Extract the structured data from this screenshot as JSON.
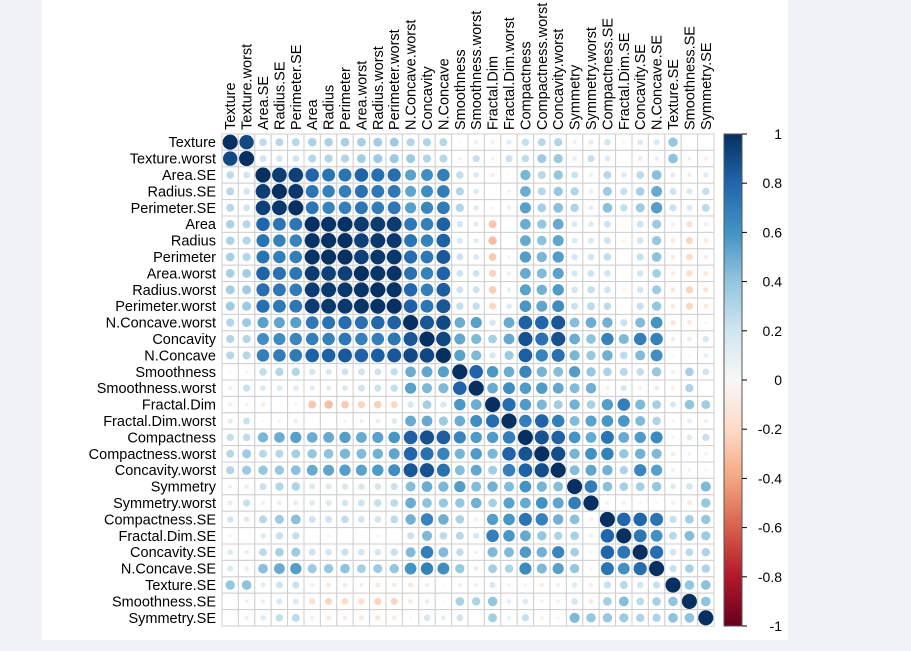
{
  "chart_data": {
    "type": "heatmap",
    "style": "corrplot-circle",
    "labels": [
      "Texture",
      "Texture.worst",
      "Area.SE",
      "Radius.SE",
      "Perimeter.SE",
      "Area",
      "Radius",
      "Perimeter",
      "Area.worst",
      "Radius.worst",
      "Perimeter.worst",
      "N.Concave.worst",
      "Concavity",
      "N.Concave",
      "Smoothness",
      "Smoothness.worst",
      "Fractal.Dim",
      "Fractal.Dim.worst",
      "Compactness",
      "Compactness.worst",
      "Concavity.worst",
      "Symmetry",
      "Symmetry.worst",
      "Compactness.SE",
      "Fractal.Dim.SE",
      "Concavity.SE",
      "N.Concave.SE",
      "Texture.SE",
      "Smoothness.SE",
      "Symmetry.SE"
    ],
    "upper_triangle": [
      [
        0.91,
        0.26,
        0.28,
        0.28,
        0.32,
        0.32,
        0.33,
        0.34,
        0.35,
        0.36,
        0.3,
        0.3,
        0.29,
        -0.02,
        0.08,
        -0.08,
        0.12,
        0.24,
        0.28,
        0.3,
        0.07,
        0.11,
        0.19,
        0.05,
        0.14,
        0.16,
        0.39,
        0.01,
        0.01
      ],
      [
        0.2,
        0.19,
        0.2,
        0.29,
        0.3,
        0.3,
        0.35,
        0.36,
        0.37,
        0.36,
        0.3,
        0.29,
        0.04,
        0.23,
        -0.05,
        0.22,
        0.25,
        0.36,
        0.37,
        0.09,
        0.23,
        0.14,
        0.0,
        0.1,
        0.09,
        0.41,
        -0.07,
        -0.08
      ],
      [
        0.95,
        0.94,
        0.8,
        0.74,
        0.74,
        0.81,
        0.76,
        0.76,
        0.54,
        0.62,
        0.69,
        0.25,
        0.14,
        -0.09,
        0.02,
        0.46,
        0.28,
        0.39,
        0.22,
        0.07,
        0.28,
        0.13,
        0.27,
        0.42,
        0.11,
        0.08,
        0.13
      ],
      [
        0.97,
        0.73,
        0.68,
        0.69,
        0.75,
        0.72,
        0.72,
        0.53,
        0.63,
        0.7,
        0.3,
        0.14,
        0.0,
        0.05,
        0.5,
        0.29,
        0.38,
        0.3,
        0.09,
        0.36,
        0.23,
        0.33,
        0.51,
        0.21,
        0.16,
        0.24
      ],
      [
        0.73,
        0.67,
        0.69,
        0.73,
        0.7,
        0.72,
        0.55,
        0.66,
        0.71,
        0.3,
        0.13,
        0.04,
        0.09,
        0.55,
        0.34,
        0.42,
        0.31,
        0.11,
        0.42,
        0.24,
        0.36,
        0.56,
        0.22,
        0.15,
        0.27
      ],
      [
        0.99,
        0.99,
        0.96,
        0.96,
        0.96,
        0.72,
        0.69,
        0.82,
        0.18,
        0.12,
        -0.28,
        0.0,
        0.5,
        0.39,
        0.51,
        0.15,
        0.14,
        0.21,
        -0.02,
        0.21,
        0.37,
        -0.07,
        -0.17,
        -0.07
      ],
      [
        1.0,
        0.94,
        0.97,
        0.97,
        0.74,
        0.68,
        0.82,
        0.17,
        0.12,
        -0.31,
        0.01,
        0.51,
        0.41,
        0.53,
        0.15,
        0.16,
        0.21,
        -0.04,
        0.19,
        0.38,
        -0.1,
        -0.22,
        -0.1
      ],
      [
        0.94,
        0.97,
        0.97,
        0.77,
        0.72,
        0.85,
        0.21,
        0.15,
        -0.26,
        0.05,
        0.56,
        0.46,
        0.56,
        0.18,
        0.19,
        0.25,
        -0.01,
        0.23,
        0.41,
        -0.09,
        -0.2,
        -0.08
      ],
      [
        0.98,
        0.98,
        0.75,
        0.68,
        0.81,
        0.21,
        0.21,
        -0.23,
        0.08,
        0.51,
        0.44,
        0.54,
        0.18,
        0.21,
        0.2,
        -0.02,
        0.19,
        0.34,
        -0.08,
        -0.18,
        -0.11
      ],
      [
        0.99,
        0.79,
        0.69,
        0.83,
        0.21,
        0.22,
        -0.25,
        0.09,
        0.54,
        0.48,
        0.57,
        0.19,
        0.24,
        0.2,
        -0.04,
        0.19,
        0.36,
        -0.11,
        -0.23,
        -0.13
      ],
      [
        0.82,
        0.73,
        0.86,
        0.24,
        0.24,
        -0.21,
        0.14,
        0.59,
        0.53,
        0.62,
        0.22,
        0.27,
        0.26,
        0.0,
        0.23,
        0.39,
        -0.1,
        -0.22,
        -0.1
      ],
      [
        0.86,
        0.91,
        0.5,
        0.55,
        0.18,
        0.51,
        0.82,
        0.8,
        0.86,
        0.43,
        0.5,
        0.48,
        0.22,
        0.44,
        0.6,
        -0.12,
        -0.1,
        -0.03
      ],
      [
        0.92,
        0.52,
        0.45,
        0.34,
        0.51,
        0.88,
        0.75,
        0.88,
        0.5,
        0.41,
        0.67,
        0.45,
        0.69,
        0.68,
        0.08,
        0.1,
        0.18
      ],
      [
        0.55,
        0.45,
        0.17,
        0.37,
        0.83,
        0.67,
        0.75,
        0.46,
        0.38,
        0.49,
        0.26,
        0.44,
        0.62,
        0.02,
        0.03,
        0.1
      ],
      [
        0.81,
        0.58,
        0.5,
        0.66,
        0.47,
        0.43,
        0.56,
        0.39,
        0.32,
        0.28,
        0.25,
        0.38,
        0.07,
        0.33,
        0.2
      ],
      [
        0.5,
        0.62,
        0.57,
        0.57,
        0.52,
        0.44,
        0.49,
        -0.06,
        0.17,
        -0.06,
        0.1,
        -0.07,
        0.31,
        -0.01
      ],
      [
        0.77,
        0.57,
        0.46,
        0.35,
        0.48,
        0.33,
        0.56,
        0.69,
        0.45,
        0.34,
        0.16,
        0.4,
        0.35
      ],
      [
        0.69,
        0.81,
        0.69,
        0.44,
        0.54,
        0.59,
        0.59,
        0.44,
        0.31,
        -0.05,
        0.1,
        0.08
      ],
      [
        0.87,
        0.82,
        0.6,
        0.51,
        0.74,
        0.51,
        0.57,
        0.64,
        0.05,
        0.14,
        0.23
      ],
      [
        0.89,
        0.47,
        0.61,
        0.68,
        0.39,
        0.48,
        0.45,
        -0.09,
        -0.06,
        -0.06
      ],
      [
        0.43,
        0.53,
        0.48,
        0.31,
        0.66,
        0.55,
        -0.07,
        -0.06,
        -0.04
      ],
      [
        0.7,
        0.42,
        0.33,
        0.34,
        0.39,
        0.13,
        0.19,
        0.45
      ],
      [
        0.06,
        0.08,
        0.04,
        -0.03,
        -0.08,
        -0.11,
        0.39
      ],
      [
        0.8,
        0.8,
        0.74,
        0.23,
        0.34,
        0.39
      ],
      [
        0.73,
        0.61,
        0.28,
        0.43,
        0.37
      ],
      [
        0.77,
        0.19,
        0.27,
        0.31
      ],
      [
        0.23,
        0.33,
        0.31
      ],
      [
        0.4,
        0.41
      ],
      [
        0.41
      ]
    ],
    "diagonal": 1,
    "colorbar": {
      "range": [
        -1,
        1
      ],
      "ticks": [
        "1",
        "0.8",
        "0.6",
        "0.4",
        "0.2",
        "0",
        "-0.2",
        "-0.4",
        "-0.6",
        "-0.8",
        "-1"
      ],
      "palette": [
        "#67001F",
        "#B2182B",
        "#D6604D",
        "#F4A582",
        "#FDDBC7",
        "#F7F7F7",
        "#D1E5F0",
        "#92C5DE",
        "#4393C3",
        "#2166AC",
        "#053061"
      ]
    },
    "grid": true,
    "legend_position": "right"
  }
}
